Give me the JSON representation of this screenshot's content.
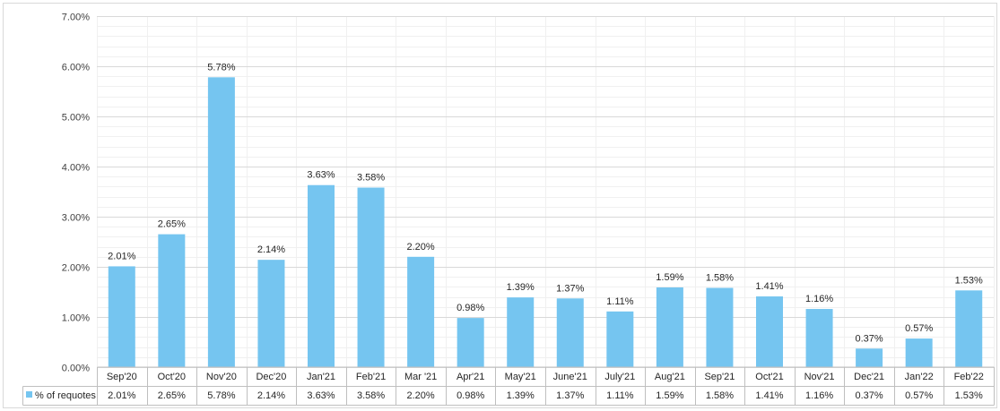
{
  "chart_data": {
    "type": "bar",
    "title": "",
    "xlabel": "",
    "ylabel": "",
    "ylim": [
      0,
      7.0
    ],
    "yticks": [
      "0.00%",
      "1.00%",
      "2.00%",
      "3.00%",
      "4.00%",
      "5.00%",
      "6.00%",
      "7.00%"
    ],
    "grid": true,
    "categories": [
      "Sep'20",
      "Oct'20",
      "Nov'20",
      "Dec'20",
      "Jan'21",
      "Feb'21",
      "Mar '21",
      "Apr'21",
      "May'21",
      "June'21",
      "July'21",
      "Aug'21",
      "Sep'21",
      "Oct'21",
      "Nov'21",
      "Dec'21",
      "Jan'22",
      "Feb'22"
    ],
    "series": [
      {
        "name": "% of requotes",
        "color": "#75C5F0",
        "values": [
          2.01,
          2.65,
          5.78,
          2.14,
          3.63,
          3.58,
          2.2,
          0.98,
          1.39,
          1.37,
          1.11,
          1.59,
          1.58,
          1.41,
          1.16,
          0.37,
          0.57,
          1.53
        ],
        "labels": [
          "2.01%",
          "2.65%",
          "5.78%",
          "2.14%",
          "3.63%",
          "3.58%",
          "2.20%",
          "0.98%",
          "1.39%",
          "1.37%",
          "1.11%",
          "1.59%",
          "1.58%",
          "1.41%",
          "1.16%",
          "0.37%",
          "0.57%",
          "1.53%"
        ]
      }
    ],
    "data_table": true
  }
}
